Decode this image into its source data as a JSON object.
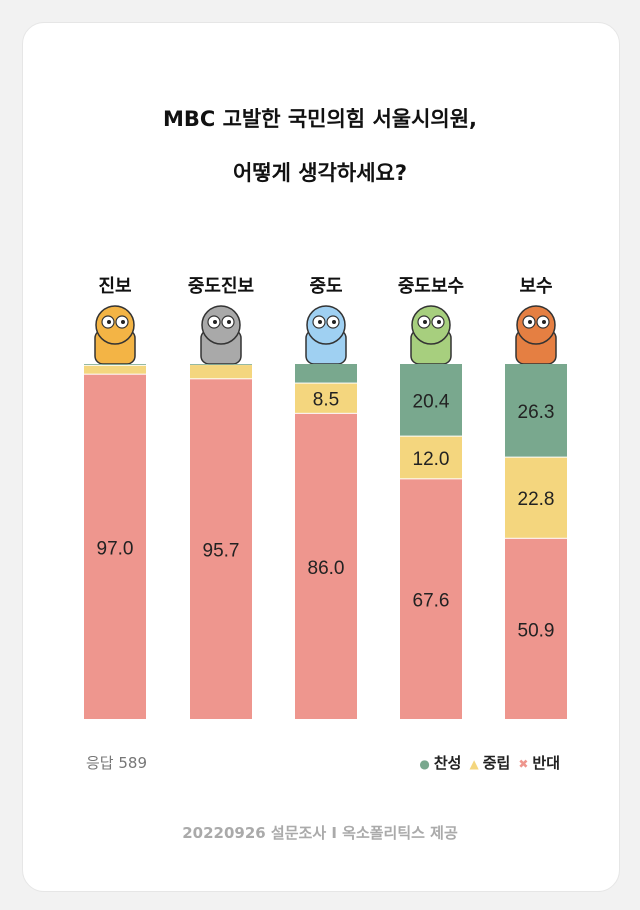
{
  "chart_data": {
    "type": "bar",
    "stacked": true,
    "title": "MBC 고발한 국민의힘 서울시의원,",
    "subtitle": "어떻게 생각하세요?",
    "categories": [
      "진보",
      "중도진보",
      "중도",
      "중도보수",
      "보수"
    ],
    "series": [
      {
        "name": "찬성",
        "marker": "●",
        "color": "#79a88e",
        "values": [
          0.5,
          0.3,
          5.5,
          20.4,
          26.3
        ],
        "labeled": [
          false,
          false,
          false,
          true,
          true
        ]
      },
      {
        "name": "중립",
        "marker": "▲",
        "color": "#f4d67e",
        "values": [
          2.5,
          4.0,
          8.5,
          12.0,
          22.8
        ],
        "labeled": [
          false,
          false,
          true,
          true,
          true
        ]
      },
      {
        "name": "반대",
        "marker": "✖",
        "color": "#ee968e",
        "values": [
          97.0,
          95.7,
          86.0,
          67.6,
          50.9
        ],
        "labeled": [
          true,
          true,
          true,
          true,
          true
        ]
      }
    ],
    "ylim": [
      0,
      100
    ],
    "legend": "bottom-right",
    "mascots": [
      "tiger",
      "hippo",
      "elephant",
      "dinosaur",
      "lion"
    ]
  },
  "footer": {
    "responses": "응답 589",
    "source": "20220926 설문조사 I 옥소폴리틱스 제공"
  }
}
